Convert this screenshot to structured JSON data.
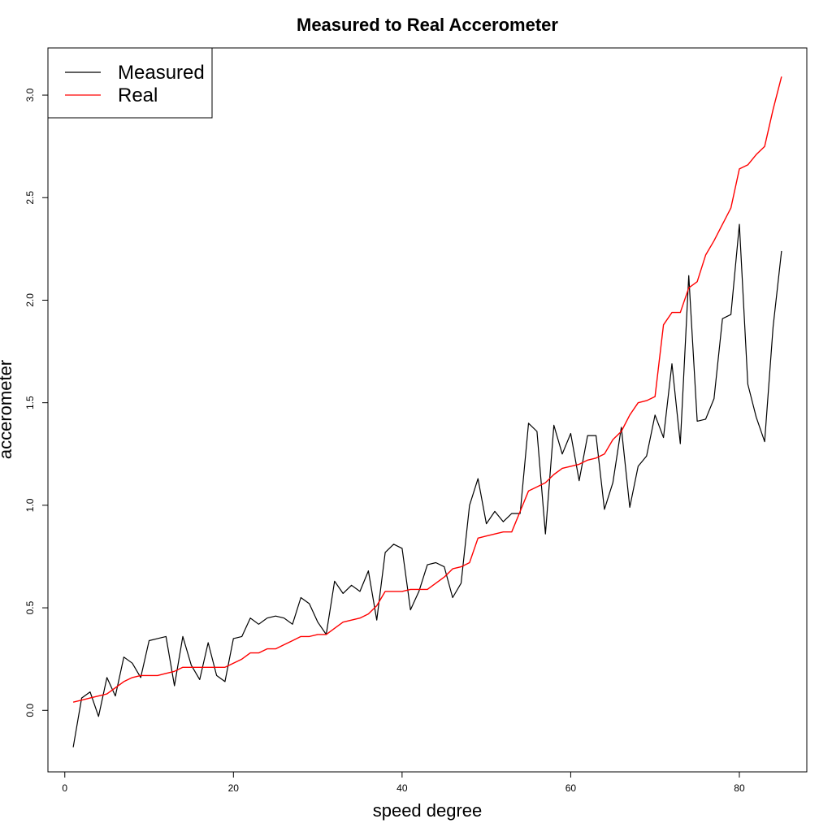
{
  "chart_data": {
    "type": "line",
    "title": "Measured to Real Accerometer",
    "xlabel": "speed degree",
    "ylabel": "accerometer",
    "xlim": [
      -2,
      88
    ],
    "ylim": [
      -0.3,
      3.23
    ],
    "x_ticks": [
      0,
      20,
      40,
      60,
      80
    ],
    "y_ticks": [
      0.0,
      0.5,
      1.0,
      1.5,
      2.0,
      2.5,
      3.0
    ],
    "x_tick_labels": [
      "0",
      "20",
      "40",
      "60",
      "80"
    ],
    "y_tick_labels": [
      "0.0",
      "0.5",
      "1.0",
      "1.5",
      "2.0",
      "2.5",
      "3.0"
    ],
    "grid": false,
    "legend_position": "top-left",
    "x": [
      1,
      2,
      3,
      4,
      5,
      6,
      7,
      8,
      9,
      10,
      11,
      12,
      13,
      14,
      15,
      16,
      17,
      18,
      19,
      20,
      21,
      22,
      23,
      24,
      25,
      26,
      27,
      28,
      29,
      30,
      31,
      32,
      33,
      34,
      35,
      36,
      37,
      38,
      39,
      40,
      41,
      42,
      43,
      44,
      45,
      46,
      47,
      48,
      49,
      50,
      51,
      52,
      53,
      54,
      55,
      56,
      57,
      58,
      59,
      60,
      61,
      62,
      63,
      64,
      65,
      66,
      67,
      68,
      69,
      70,
      71,
      72,
      73,
      74,
      75,
      76,
      77,
      78,
      79,
      80,
      81,
      82,
      83,
      84,
      85
    ],
    "series": [
      {
        "name": "Measured",
        "color": "#000000",
        "values": [
          -0.18,
          0.06,
          0.09,
          -0.03,
          0.16,
          0.07,
          0.26,
          0.23,
          0.16,
          0.34,
          0.35,
          0.36,
          0.12,
          0.36,
          0.22,
          0.15,
          0.33,
          0.17,
          0.14,
          0.35,
          0.36,
          0.45,
          0.42,
          0.45,
          0.46,
          0.45,
          0.42,
          0.55,
          0.52,
          0.43,
          0.37,
          0.63,
          0.57,
          0.61,
          0.58,
          0.68,
          0.44,
          0.77,
          0.81,
          0.79,
          0.49,
          0.58,
          0.71,
          0.72,
          0.7,
          0.55,
          0.62,
          1.0,
          1.13,
          0.91,
          0.97,
          0.92,
          0.96,
          0.96,
          1.4,
          1.36,
          0.86,
          1.39,
          1.25,
          1.35,
          1.12,
          1.34,
          1.34,
          0.98,
          1.11,
          1.38,
          0.99,
          1.19,
          1.24,
          1.44,
          1.33,
          1.69,
          1.3,
          2.12,
          1.41,
          1.42,
          1.52,
          1.91,
          1.93,
          2.37,
          1.59,
          1.43,
          1.31,
          1.87,
          2.24
        ]
      },
      {
        "name": "Real",
        "color": "#ff0000",
        "values": [
          0.04,
          0.05,
          0.06,
          0.07,
          0.08,
          0.11,
          0.14,
          0.16,
          0.17,
          0.17,
          0.17,
          0.18,
          0.19,
          0.21,
          0.21,
          0.21,
          0.21,
          0.21,
          0.21,
          0.23,
          0.25,
          0.28,
          0.28,
          0.3,
          0.3,
          0.32,
          0.34,
          0.36,
          0.36,
          0.37,
          0.37,
          0.4,
          0.43,
          0.44,
          0.45,
          0.47,
          0.51,
          0.58,
          0.58,
          0.58,
          0.59,
          0.59,
          0.59,
          0.62,
          0.65,
          0.69,
          0.7,
          0.72,
          0.84,
          0.85,
          0.86,
          0.87,
          0.87,
          0.97,
          1.07,
          1.09,
          1.11,
          1.15,
          1.18,
          1.19,
          1.2,
          1.22,
          1.23,
          1.25,
          1.32,
          1.36,
          1.44,
          1.5,
          1.51,
          1.53,
          1.88,
          1.94,
          1.94,
          2.06,
          2.09,
          2.22,
          2.29,
          2.37,
          2.45,
          2.64,
          2.66,
          2.71,
          2.75,
          2.93,
          3.09
        ]
      }
    ]
  }
}
